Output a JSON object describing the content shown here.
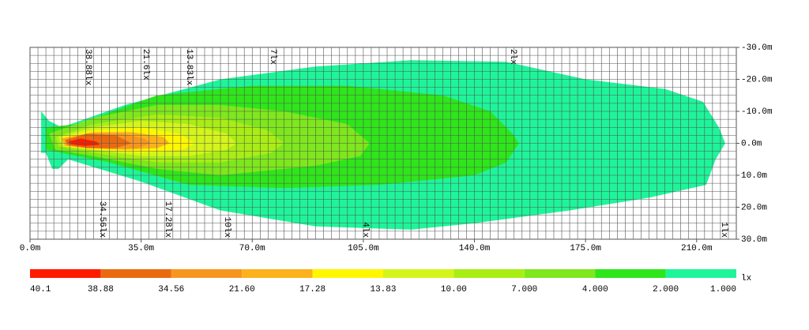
{
  "chart_data": {
    "type": "contour",
    "xlim": [
      0,
      222.5
    ],
    "ylim": [
      -30,
      30
    ],
    "grid_step": 2.5,
    "xticks": [
      {
        "value": 0,
        "label": "0.0m"
      },
      {
        "value": 35,
        "label": "35.0m"
      },
      {
        "value": 70,
        "label": "70.0m"
      },
      {
        "value": 105,
        "label": "105.0m"
      },
      {
        "value": 140,
        "label": "140.0m"
      },
      {
        "value": 175,
        "label": "175.0m"
      },
      {
        "value": 210,
        "label": "210.0m"
      }
    ],
    "yticks": [
      {
        "value": -30,
        "label": "-30.0m"
      },
      {
        "value": -20,
        "label": "-20.0m"
      },
      {
        "value": -10,
        "label": "-10.0m"
      },
      {
        "value": 0,
        "label": "0.0m"
      },
      {
        "value": 10,
        "label": "10.0m"
      },
      {
        "value": 20,
        "label": "20.0m"
      },
      {
        "value": 30,
        "label": "30.0m"
      }
    ],
    "contours": [
      {
        "label": "1lx",
        "color": "#1ef59a",
        "points": [
          [
            3.5,
            -10
          ],
          [
            6,
            -7
          ],
          [
            10,
            -5
          ],
          [
            30,
            -12
          ],
          [
            60,
            -20
          ],
          [
            90,
            -24
          ],
          [
            120,
            -26
          ],
          [
            150,
            -25.5
          ],
          [
            175,
            -20
          ],
          [
            200,
            -17
          ],
          [
            212,
            -13
          ],
          [
            217,
            -5
          ],
          [
            219,
            0
          ],
          [
            216,
            5
          ],
          [
            213,
            13
          ],
          [
            195,
            17
          ],
          [
            170,
            21
          ],
          [
            140,
            25
          ],
          [
            120,
            27
          ],
          [
            90,
            26
          ],
          [
            60,
            21
          ],
          [
            35,
            12
          ],
          [
            12,
            5
          ],
          [
            9,
            8
          ],
          [
            7,
            8
          ],
          [
            5,
            3
          ],
          [
            3.5,
            3
          ]
        ]
      },
      {
        "label": "2lx",
        "color": "#2ee61a",
        "points": [
          [
            5,
            -5
          ],
          [
            15,
            -6
          ],
          [
            40,
            -15
          ],
          [
            70,
            -18
          ],
          [
            100,
            -18
          ],
          [
            130,
            -15
          ],
          [
            145,
            -10
          ],
          [
            152,
            -3
          ],
          [
            154,
            0
          ],
          [
            150,
            6
          ],
          [
            140,
            10
          ],
          [
            110,
            13
          ],
          [
            80,
            14
          ],
          [
            50,
            13
          ],
          [
            25,
            6
          ],
          [
            10,
            3
          ],
          [
            5,
            2
          ]
        ]
      },
      {
        "label": "4lx",
        "color": "#7ee81c",
        "points": [
          [
            6,
            -3
          ],
          [
            20,
            -8
          ],
          [
            40,
            -12
          ],
          [
            60,
            -12
          ],
          [
            80,
            -10
          ],
          [
            100,
            -6
          ],
          [
            107,
            0
          ],
          [
            104,
            4
          ],
          [
            90,
            7
          ],
          [
            60,
            10
          ],
          [
            40,
            8
          ],
          [
            20,
            4
          ],
          [
            8,
            2
          ]
        ]
      },
      {
        "label": "7lx",
        "color": "#a8ee14",
        "points": [
          [
            8,
            -2
          ],
          [
            20,
            -6
          ],
          [
            40,
            -9
          ],
          [
            60,
            -8
          ],
          [
            75,
            -4
          ],
          [
            80,
            0
          ],
          [
            76,
            3
          ],
          [
            60,
            6
          ],
          [
            40,
            6
          ],
          [
            20,
            3
          ],
          [
            9,
            1
          ]
        ]
      },
      {
        "label": "10lx",
        "color": "#d4f51a",
        "points": [
          [
            9,
            -2
          ],
          [
            20,
            -5
          ],
          [
            35,
            -7
          ],
          [
            50,
            -6
          ],
          [
            62,
            -3
          ],
          [
            65,
            0
          ],
          [
            62,
            2
          ],
          [
            50,
            4
          ],
          [
            35,
            4
          ],
          [
            20,
            2
          ],
          [
            10,
            1
          ]
        ]
      },
      {
        "label": "13.83lx",
        "color": "#fff700",
        "points": [
          [
            10,
            -2
          ],
          [
            20,
            -4
          ],
          [
            35,
            -5
          ],
          [
            47,
            -3
          ],
          [
            52,
            0
          ],
          [
            48,
            2
          ],
          [
            35,
            3
          ],
          [
            20,
            2
          ],
          [
            11,
            1
          ]
        ]
      },
      {
        "label": "17.28lx",
        "color": "#fcb21c",
        "points": [
          [
            10,
            -1.5
          ],
          [
            20,
            -3.5
          ],
          [
            32,
            -3.5
          ],
          [
            42,
            -2
          ],
          [
            44,
            0
          ],
          [
            40,
            1.5
          ],
          [
            30,
            2
          ],
          [
            18,
            1.5
          ],
          [
            11,
            0.8
          ]
        ]
      },
      {
        "label": "21.6lx",
        "color": "#f7961e",
        "points": [
          [
            11,
            -1.2
          ],
          [
            19,
            -3
          ],
          [
            29,
            -3
          ],
          [
            36,
            -1.5
          ],
          [
            38,
            0
          ],
          [
            34,
            1.5
          ],
          [
            25,
            1.8
          ],
          [
            17,
            1.4
          ],
          [
            11.5,
            0.6
          ]
        ]
      },
      {
        "label": "34.56lx",
        "color": "#ea6a10",
        "points": [
          [
            11,
            -1
          ],
          [
            18,
            -3
          ],
          [
            27,
            -2.5
          ],
          [
            32,
            0
          ],
          [
            27,
            1.5
          ],
          [
            18,
            1.5
          ],
          [
            12,
            0.5
          ]
        ]
      },
      {
        "label": "38.88lx",
        "color": "#ff1a00",
        "points": [
          [
            12,
            -0.5
          ],
          [
            16,
            -1.5
          ],
          [
            21,
            -0.5
          ],
          [
            22,
            0.5
          ],
          [
            17,
            0.8
          ],
          [
            13,
            0.3
          ]
        ]
      }
    ],
    "legend": {
      "unit": "lx",
      "labels": [
        40.1,
        38.88,
        34.56,
        {
          "value": 21.6,
          "label": "21.60"
        },
        17.28,
        13.83,
        {
          "value": 10,
          "label": "10.00"
        },
        {
          "value": 7,
          "label": "7.000"
        },
        {
          "value": 4,
          "label": "4.000"
        },
        {
          "value": 2,
          "label": "2.000"
        },
        {
          "value": 1,
          "label": "1.000"
        }
      ],
      "colors": [
        "#ff1a00",
        "#ea6a10",
        "#f7961e",
        "#fcb21c",
        "#fff700",
        "#d4f51a",
        "#a8ee14",
        "#7ee81c",
        "#2ee61a",
        "#1ef59a"
      ]
    }
  }
}
